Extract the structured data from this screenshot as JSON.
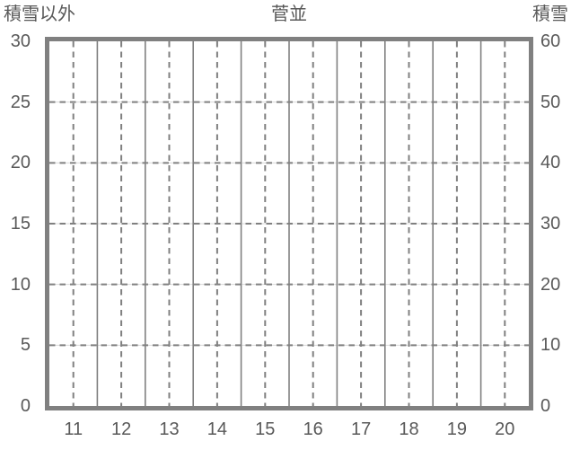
{
  "header": {
    "left_axis_title": "積雪以外",
    "chart_title": "菅並",
    "right_axis_title": "積雪"
  },
  "chart_data": {
    "type": "line",
    "title": "菅並",
    "categories": [
      "11",
      "12",
      "13",
      "14",
      "15",
      "16",
      "17",
      "18",
      "19",
      "20"
    ],
    "series": [],
    "left_axis": {
      "title": "積雪以外",
      "min": 0,
      "max": 30,
      "step": 5,
      "tick_labels": [
        "0",
        "5",
        "10",
        "15",
        "20",
        "25",
        "30"
      ]
    },
    "right_axis": {
      "title": "積雪",
      "min": 0,
      "max": 60,
      "step": 10,
      "tick_labels": [
        "0",
        "10",
        "20",
        "30",
        "40",
        "50",
        "60"
      ]
    },
    "x_axis": {
      "tick_labels": [
        "11",
        "12",
        "13",
        "14",
        "15",
        "16",
        "17",
        "18",
        "19",
        "20"
      ]
    },
    "grid": {
      "horizontal_style": "dashed-over-faint-solid",
      "vertical_boundary_style": "solid",
      "vertical_center_style": "dashed",
      "grid_on": true
    },
    "legend": "none",
    "colors": {
      "frame": "#808080",
      "gridline": "#808080",
      "gridline_faint": "#d9d9d9",
      "label_text": "#595959",
      "background": "#ffffff"
    }
  }
}
